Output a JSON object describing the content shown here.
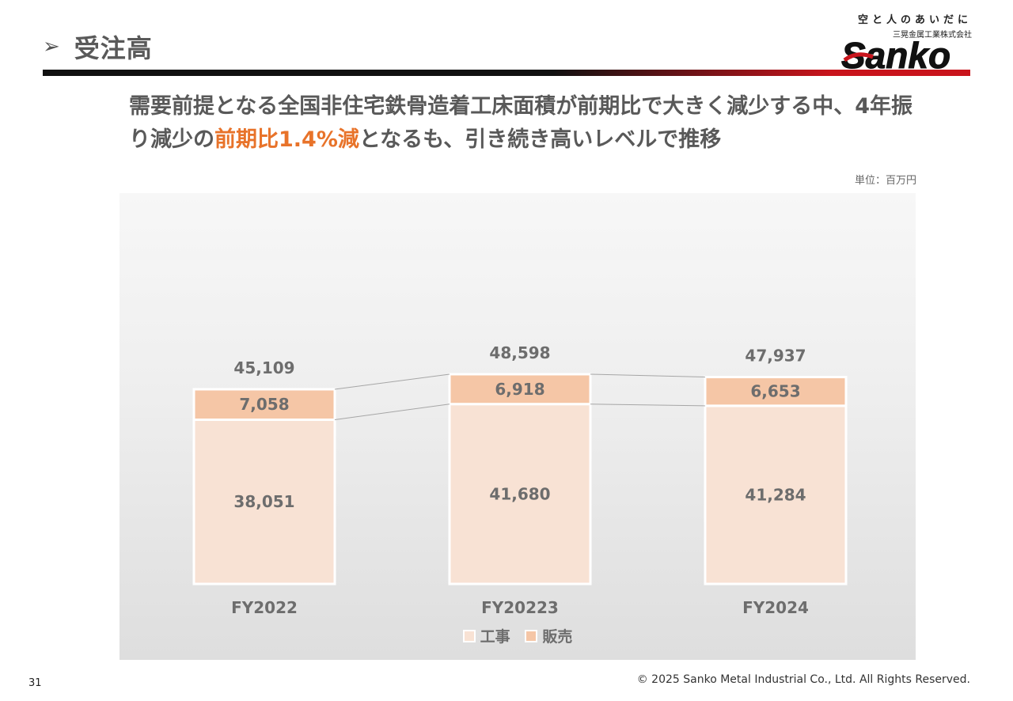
{
  "header": {
    "arrow": "➢",
    "title": "受注高",
    "logo": {
      "tagline": "空と人のあいだに",
      "company": "三晃金属工業株式会社",
      "wordmark": "Sanko",
      "accent_color": "#c9141c"
    }
  },
  "headline": {
    "part1": "需要前提となる全国非住宅鉄骨造着工床面積が前期比で大きく減少する中、4年振り減少の",
    "highlight": "前期比1.4%減",
    "part2": "となるも、引き続き高いレベルで推移",
    "highlight_color": "#e8732a"
  },
  "unit_label": "単位：百万円",
  "chart_data": {
    "type": "bar",
    "stacked": true,
    "categories": [
      "FY2022",
      "FY20223",
      "FY2024"
    ],
    "series": [
      {
        "name": "工事",
        "values": [
          38051,
          41680,
          41284
        ],
        "color": "#f8e2d4"
      },
      {
        "name": "販売",
        "values": [
          7058,
          6918,
          6653
        ],
        "color": "#f5c6a6"
      }
    ],
    "totals": [
      45109,
      48598,
      47937
    ],
    "ylim": [
      0,
      50000
    ],
    "legend": "bottom",
    "grid": false
  },
  "footer": {
    "page_number": "31",
    "copyright": "© 2025 Sanko Metal Industrial Co., Ltd. All Rights Reserved."
  }
}
